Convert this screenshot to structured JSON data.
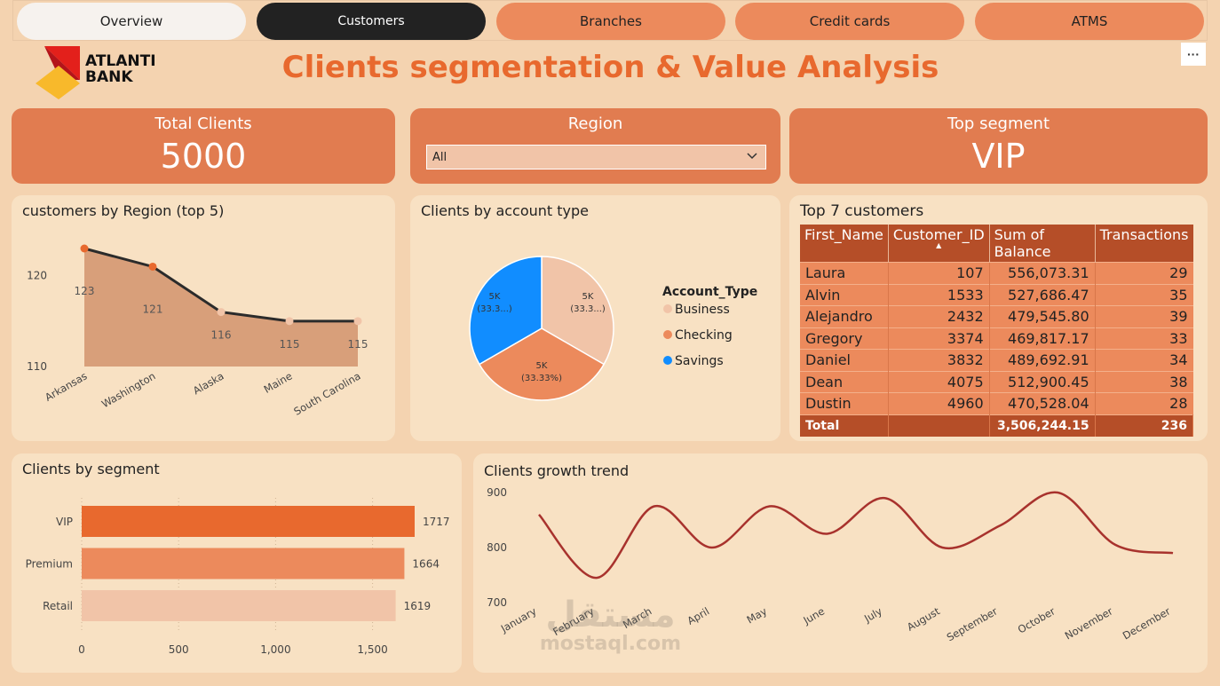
{
  "nav": {
    "tabs": [
      {
        "label": "Overview"
      },
      {
        "label": "Customers"
      },
      {
        "label": "Branches"
      },
      {
        "label": "Credit cards"
      },
      {
        "label": "ATMS"
      }
    ]
  },
  "logo": {
    "line1": "ATLANTI",
    "line2": "BANK"
  },
  "title": "Clients segmentation & Value Analysis",
  "more_label": "···",
  "kpis": {
    "total_clients": {
      "label": "Total Clients",
      "value": "5000"
    },
    "region": {
      "label": "Region",
      "selected": "All"
    },
    "top_segment": {
      "label": "Top segment",
      "value": "VIP"
    }
  },
  "colors": {
    "accent": "#e8692e",
    "card": "#e17c50",
    "panel": "#f8e1c3",
    "table_header": "#b54e28"
  },
  "chart_data": [
    {
      "type": "area",
      "title": "customers by Region (top 5)",
      "categories": [
        "Arkansas",
        "Washington",
        "Alaska",
        "Maine",
        "South Carolina"
      ],
      "values": [
        123,
        121,
        116,
        115,
        115
      ],
      "y_ticks": [
        "120",
        "110"
      ],
      "ylim": [
        110,
        123
      ]
    },
    {
      "type": "pie",
      "title": "Clients by account type",
      "legend_title": "Account_Type",
      "slices": [
        {
          "name": "Business",
          "value": 33.33,
          "label_top": "5K",
          "label_bottom": "(33.3...)",
          "color": "#f1c4a8"
        },
        {
          "name": "Checking",
          "value": 33.33,
          "label_top": "5K",
          "label_bottom": "(33.33%)",
          "color": "#ec8a5c"
        },
        {
          "name": "Savings",
          "value": 33.33,
          "label_top": "5K",
          "label_bottom": "(33.3...)",
          "color": "#118dff"
        }
      ]
    },
    {
      "type": "table",
      "title": "Top 7 customers",
      "columns": [
        "First_Name",
        "Customer_ID",
        "Sum of Balance",
        "Transactions"
      ],
      "rows": [
        [
          "Laura",
          "107",
          "556,073.31",
          "29"
        ],
        [
          "Alvin",
          "1533",
          "527,686.47",
          "35"
        ],
        [
          "Alejandro",
          "2432",
          "479,545.80",
          "39"
        ],
        [
          "Gregory",
          "3374",
          "469,817.17",
          "33"
        ],
        [
          "Daniel",
          "3832",
          "489,692.91",
          "34"
        ],
        [
          "Dean",
          "4075",
          "512,900.45",
          "38"
        ],
        [
          "Dustin",
          "4960",
          "470,528.04",
          "28"
        ]
      ],
      "total": [
        "Total",
        "",
        "3,506,244.15",
        "236"
      ]
    },
    {
      "type": "bar",
      "title": "Clients by segment",
      "categories": [
        "VIP",
        "Premium",
        "Retail"
      ],
      "values": [
        1717,
        1664,
        1619
      ],
      "colors": [
        "#e8692e",
        "#ec8a5c",
        "#f1c4a8"
      ],
      "x_ticks": [
        "0",
        "500",
        "1,000",
        "1,500"
      ],
      "xlim": [
        0,
        1800
      ]
    },
    {
      "type": "line",
      "title": "Clients growth trend",
      "categories": [
        "January",
        "February",
        "March",
        "April",
        "May",
        "June",
        "July",
        "August",
        "September",
        "October",
        "November",
        "December"
      ],
      "values": [
        860,
        745,
        875,
        800,
        875,
        825,
        890,
        800,
        840,
        900,
        805,
        790
      ],
      "y_ticks": [
        "900",
        "800",
        "700"
      ],
      "ylim": [
        700,
        900
      ]
    }
  ],
  "watermark": {
    "arabic": "مستقل",
    "latin": "mostaql.com"
  }
}
